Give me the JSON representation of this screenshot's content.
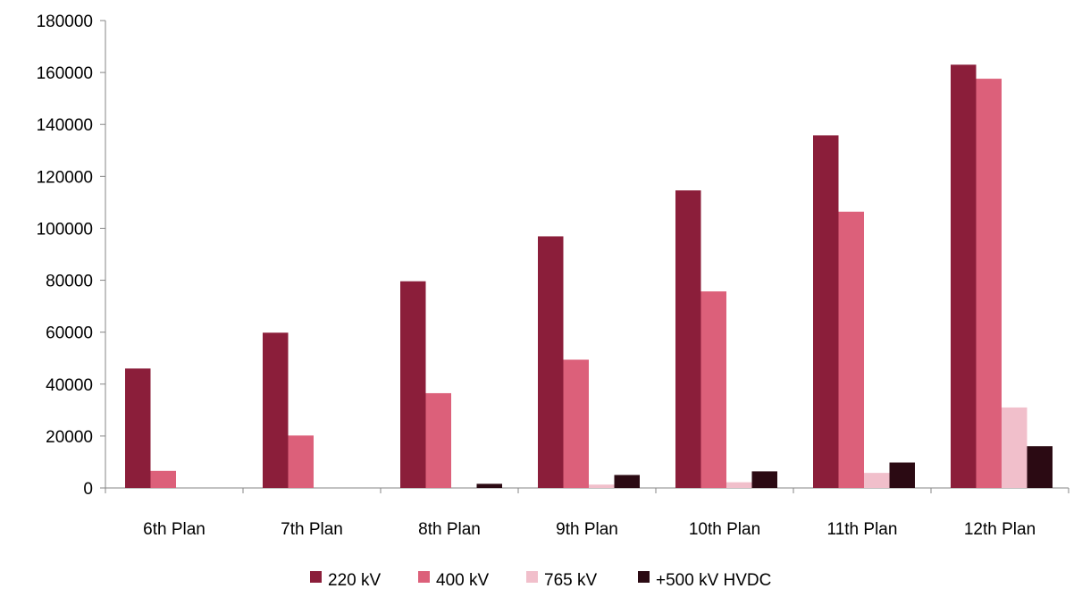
{
  "chart_data": {
    "type": "bar",
    "title": "",
    "xlabel": "",
    "ylabel": "",
    "categories": [
      "6th Plan",
      "7th Plan",
      "8th Plan",
      "9th Plan",
      "10th Plan",
      "11th Plan",
      "12th Plan"
    ],
    "series": [
      {
        "name": "220 kV",
        "color": "#8B1E3A",
        "values": [
          46000,
          59800,
          79600,
          96900,
          114600,
          135800,
          163000
        ]
      },
      {
        "name": "400 kV",
        "color": "#DC607A",
        "values": [
          6600,
          20200,
          36500,
          49400,
          75700,
          106400,
          157600
        ]
      },
      {
        "name": "765 kV",
        "color": "#F1BFCB",
        "values": [
          0,
          0,
          0,
          1300,
          2200,
          5800,
          31000
        ]
      },
      {
        "name": "+500 kV HVDC",
        "color": "#2B0A13",
        "values": [
          0,
          0,
          1600,
          5000,
          6400,
          9800,
          16100
        ]
      }
    ],
    "ylim": [
      0,
      180000
    ],
    "yticks": [
      0,
      20000,
      40000,
      60000,
      80000,
      100000,
      120000,
      140000,
      160000,
      180000
    ],
    "grid": false,
    "legend_position": "bottom"
  }
}
